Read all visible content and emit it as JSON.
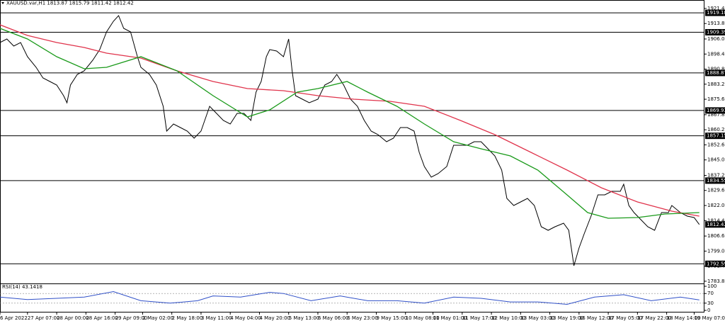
{
  "chart_data": [
    {
      "type": "line",
      "title": "XAUUSD.var,H1  1813.87 1815.79 1811.42 1812.42",
      "xlim": [
        0,
        410
      ],
      "xticks": [
        {
          "value": 0,
          "label": "6 Apr 2022"
        },
        {
          "value": 16,
          "label": "27 Apr 07:00"
        },
        {
          "value": 33,
          "label": "28 Apr 00:00"
        },
        {
          "value": 50,
          "label": "28 Apr 16:00"
        },
        {
          "value": 67,
          "label": "29 Apr 09:00"
        },
        {
          "value": 83,
          "label": "2 May 02:00"
        },
        {
          "value": 100,
          "label": "2 May 18:00"
        },
        {
          "value": 117,
          "label": "3 May 11:00"
        },
        {
          "value": 134,
          "label": "4 May 04:00"
        },
        {
          "value": 151,
          "label": "4 May 20:00"
        },
        {
          "value": 168,
          "label": "5 May 13:00"
        },
        {
          "value": 185,
          "label": "6 May 06:00"
        },
        {
          "value": 202,
          "label": "6 May 23:00"
        },
        {
          "value": 219,
          "label": "9 May 15:00"
        },
        {
          "value": 236,
          "label": "10 May 08:00"
        },
        {
          "value": 252,
          "label": "11 May 01:00"
        },
        {
          "value": 269,
          "label": "11 May 17:00"
        },
        {
          "value": 286,
          "label": "12 May 10:00"
        },
        {
          "value": 303,
          "label": "13 May 03:00"
        },
        {
          "value": 320,
          "label": "13 May 19:00"
        },
        {
          "value": 337,
          "label": "16 May 12:00"
        },
        {
          "value": 354,
          "label": "17 May 05:00"
        },
        {
          "value": 371,
          "label": "17 May 22:00"
        },
        {
          "value": 388,
          "label": "18 May 14:00"
        },
        {
          "value": 404,
          "label": "19 May 07:00"
        }
      ],
      "ylim": [
        1783.4,
        1922.8
      ],
      "yticks": [
        {
          "value": 1921.4,
          "label": "1921.40"
        },
        {
          "value": 1913.8,
          "label": "1913.80"
        },
        {
          "value": 1906,
          "label": "1906.00"
        },
        {
          "value": 1898.4,
          "label": "1898.40"
        },
        {
          "value": 1890.8,
          "label": "1890.80"
        },
        {
          "value": 1883.2,
          "label": "1883.20"
        },
        {
          "value": 1875.6,
          "label": "1875.60"
        },
        {
          "value": 1867.8,
          "label": "1867.80"
        },
        {
          "value": 1860.2,
          "label": "1860.20"
        },
        {
          "value": 1852.6,
          "label": "1852.60"
        },
        {
          "value": 1845,
          "label": "1845.00"
        },
        {
          "value": 1837.2,
          "label": "1837.20"
        },
        {
          "value": 1829.6,
          "label": "1829.60"
        },
        {
          "value": 1822,
          "label": "1822.00"
        },
        {
          "value": 1814.4,
          "label": "1814.40"
        },
        {
          "value": 1806.6,
          "label": "1806.60"
        },
        {
          "value": 1799,
          "label": "1799.00"
        },
        {
          "value": 1791.4,
          "label": "1791.40"
        },
        {
          "value": 1783.8,
          "label": "1783.80"
        }
      ],
      "levels": [
        1919.18,
        1909.39,
        1888.87,
        1869.93,
        1857.15,
        1834.55,
        1792.59
      ],
      "current_price": 1812.42,
      "series": [
        {
          "name": "close",
          "color": "#000000",
          "x": [
            0,
            4,
            8,
            12,
            16,
            21,
            25,
            29,
            33,
            37,
            39,
            41,
            45,
            49,
            54,
            58,
            62,
            66,
            69,
            72,
            76,
            80,
            82,
            87,
            91,
            95,
            97,
            101,
            105,
            109,
            113,
            117,
            122,
            126,
            130,
            134,
            138,
            142,
            146,
            149,
            152,
            155,
            157,
            161,
            165,
            168,
            170,
            172,
            176,
            180,
            185,
            189,
            193,
            196,
            200,
            204,
            208,
            212,
            216,
            220,
            225,
            229,
            233,
            237,
            241,
            244,
            247,
            251,
            255,
            260,
            264,
            268,
            272,
            276,
            280,
            284,
            288,
            292,
            295,
            299,
            303,
            307,
            311,
            315,
            319,
            323,
            328,
            331,
            334,
            337,
            340,
            344,
            348,
            352,
            356,
            361,
            363,
            366,
            369,
            373,
            377,
            381,
            385,
            389,
            391,
            396,
            400,
            404,
            407
          ],
          "values": [
            1904.21,
            1906.0,
            1902.43,
            1904.21,
            1897.06,
            1891.7,
            1886.34,
            1884.55,
            1882.77,
            1877.41,
            1873.83,
            1882.77,
            1888.13,
            1889.92,
            1895.28,
            1900.64,
            1909.57,
            1914.94,
            1917.8,
            1911.36,
            1909.57,
            1897.06,
            1891.7,
            1888.13,
            1882.77,
            1872.04,
            1859.53,
            1863.11,
            1861.32,
            1859.53,
            1855.96,
            1859.53,
            1872.04,
            1868.47,
            1864.89,
            1863.11,
            1868.47,
            1868.47,
            1864.89,
            1879.19,
            1884.55,
            1897.06,
            1900.64,
            1899.92,
            1897.06,
            1906.0,
            1889.92,
            1877.41,
            1875.62,
            1873.83,
            1875.62,
            1882.77,
            1884.55,
            1888.13,
            1882.77,
            1875.62,
            1872.04,
            1864.89,
            1859.53,
            1857.75,
            1854.17,
            1855.96,
            1861.32,
            1861.32,
            1859.53,
            1848.81,
            1841.66,
            1836.3,
            1838.09,
            1841.66,
            1852.39,
            1852.39,
            1852.39,
            1854.17,
            1854.17,
            1850.6,
            1847.02,
            1839.87,
            1825.58,
            1822.0,
            1823.79,
            1825.58,
            1822.0,
            1811.28,
            1809.49,
            1811.28,
            1813.07,
            1809.49,
            1791.62,
            1800.56,
            1807.7,
            1816.64,
            1827.36,
            1827.36,
            1829.15,
            1829.15,
            1832.73,
            1822.0,
            1818.43,
            1814.85,
            1811.28,
            1809.49,
            1818.43,
            1818.43,
            1822.0,
            1818.43,
            1816.64,
            1815.93,
            1812.42
          ]
        },
        {
          "name": "slow-ma",
          "color": "#e0344c",
          "x": [
            0,
            16,
            33,
            49,
            62,
            82,
            103,
            124,
            144,
            165,
            185,
            206,
            227,
            247,
            268,
            288,
            309,
            330,
            350,
            371,
            391,
            407
          ],
          "values": [
            1913.15,
            1907.79,
            1904.21,
            1901.71,
            1898.85,
            1896.35,
            1889.92,
            1884.55,
            1880.98,
            1879.91,
            1877.41,
            1875.62,
            1874.55,
            1872.04,
            1864.89,
            1857.75,
            1848.81,
            1839.87,
            1830.94,
            1823.79,
            1819.14,
            1816.64
          ]
        },
        {
          "name": "fast-ma",
          "color": "#1a9a1a",
          "x": [
            0,
            16,
            33,
            49,
            62,
            82,
            103,
            124,
            144,
            157,
            173,
            185,
            202,
            214,
            231,
            247,
            264,
            280,
            297,
            313,
            330,
            342,
            354,
            371,
            387,
            407
          ],
          "values": [
            1911.36,
            1906.0,
            1897.06,
            1890.99,
            1891.7,
            1897.06,
            1889.92,
            1877.41,
            1866.68,
            1870.25,
            1879.19,
            1880.98,
            1884.55,
            1879.19,
            1872.04,
            1863.11,
            1854.17,
            1850.6,
            1847.02,
            1839.87,
            1827.36,
            1818.43,
            1815.57,
            1815.93,
            1817.72,
            1818.43
          ]
        }
      ]
    },
    {
      "type": "line",
      "title": "RSI(14) 43.1418",
      "ylim": [
        0,
        100
      ],
      "yticks": [
        100,
        70,
        30,
        0
      ],
      "series": [
        {
          "name": "rsi",
          "color": "#3050c8",
          "x": [
            0,
            16,
            33,
            49,
            66,
            82,
            99,
            115,
            124,
            140,
            157,
            165,
            181,
            198,
            214,
            231,
            247,
            264,
            280,
            297,
            313,
            330,
            346,
            363,
            379,
            396,
            407
          ],
          "values": [
            55,
            45,
            50,
            55,
            78,
            40,
            30,
            40,
            60,
            55,
            75,
            70,
            40,
            60,
            40,
            40,
            30,
            55,
            50,
            35,
            35,
            25,
            55,
            65,
            40,
            55,
            43.1418
          ]
        }
      ]
    }
  ]
}
